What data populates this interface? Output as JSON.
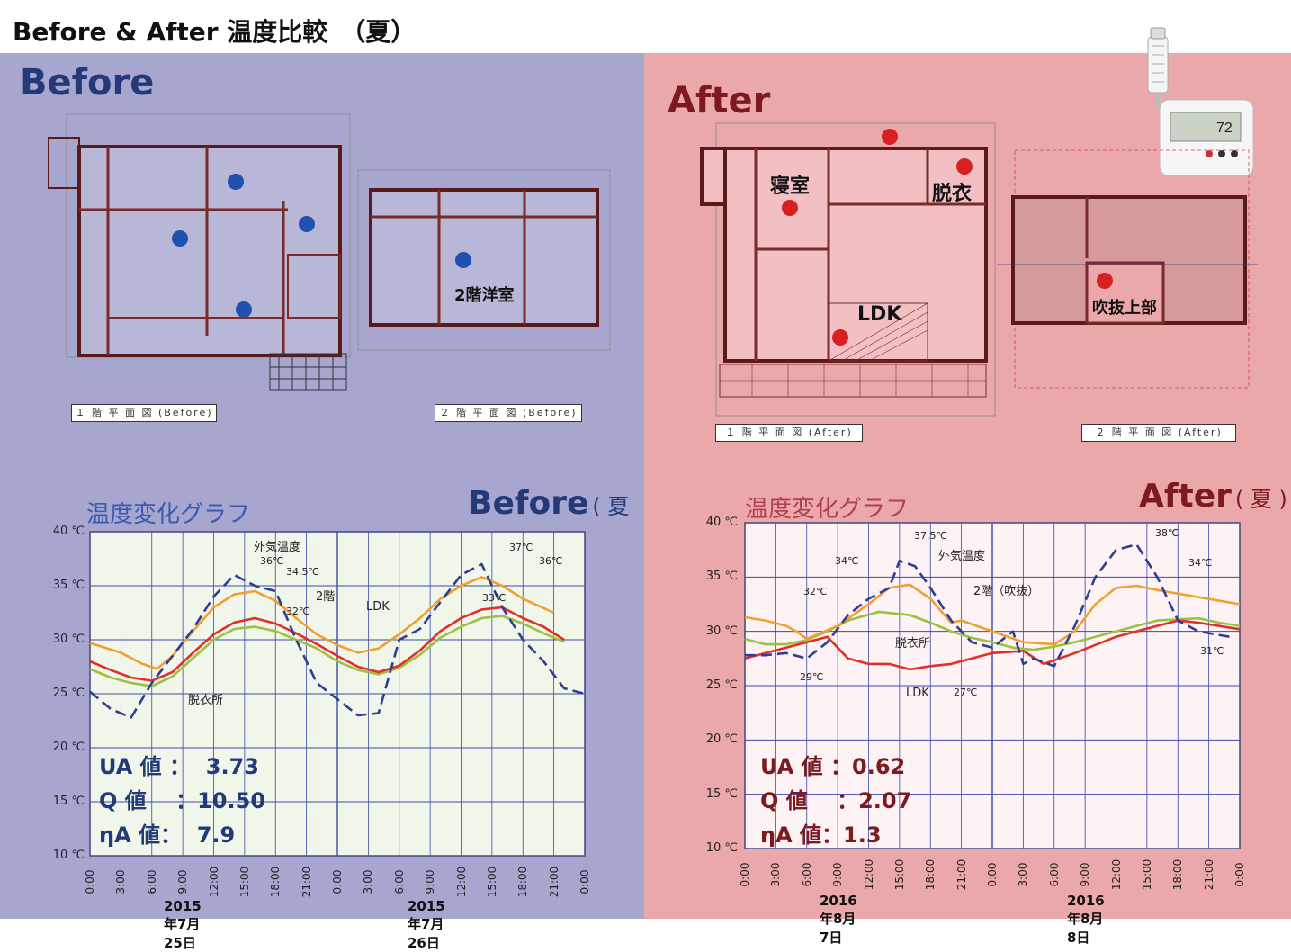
{
  "page_title": "Before & After 温度比較　（夏）",
  "before": {
    "heading": "Before",
    "plan1_caption": "１ 階 平 面 図 (Before)",
    "plan2_caption": "２ 階 平 面 図 (Before)",
    "room_2f": "2階洋室",
    "graph_title": "温度変化グラフ",
    "graph_tag": "Before",
    "season": "( 夏 )",
    "dates": [
      "2015年7月25日",
      "2015年7月26日"
    ],
    "stats": {
      "ua": "UA 値 ：  3.73",
      "q": "Q 値　 ：10.50",
      "eta": "ηA 値：  7.9"
    },
    "annotations": [
      "36℃",
      "34.5℃",
      "32℃",
      "37℃",
      "36℃",
      "33℃"
    ],
    "line_labels": {
      "outdoor": "外気温度",
      "floor2": "2階",
      "ldk": "LDK",
      "dressing": "脱衣所"
    }
  },
  "after": {
    "heading": "After",
    "plan1_caption": "１ 階 平 面 図 (After)",
    "plan2_caption": "２ 階 平 面 図 (After)",
    "rooms": {
      "bedroom": "寝室",
      "dressing": "脱衣",
      "ldk": "LDK",
      "atrium": "吹抜上部"
    },
    "graph_title": "温度変化グラフ",
    "graph_tag": "After",
    "season": "( 夏 )",
    "dates": [
      "2016年8月7日",
      "2016年8月8日"
    ],
    "stats": {
      "ua": "UA 値 ：0.62",
      "q": "Q 値　 ：2.07",
      "eta": "ηA 値：1.3"
    },
    "annotations": [
      "37.5℃",
      "34℃",
      "32℃",
      "29℃",
      "27℃",
      "38℃",
      "34℃",
      "31℃"
    ],
    "line_labels": {
      "outdoor": "外気温度",
      "floor2": "2階（吹抜）",
      "ldk": "LDK",
      "dressing": "脱衣所"
    },
    "device_display": "72"
  },
  "colors": {
    "before_head": "#233a78",
    "after_head": "#7c1a1f",
    "before_panel": "#a7a6cf",
    "after_panel": "#eba8aa",
    "outdoor": "#2c3e96",
    "floor2": "#f0a030",
    "ldk": "#e0302a",
    "dressing": "#9cc040",
    "dot_before": "#2050b0",
    "dot_after": "#d82020"
  },
  "chart_data": [
    {
      "type": "line",
      "title": "温度変化グラフ",
      "ylim": [
        10,
        40
      ],
      "yticks": [
        "40 ℃",
        "35 ℃",
        "30 ℃",
        "25 ℃",
        "20 ℃",
        "15 ℃",
        "10 ℃"
      ],
      "xticks": [
        "0:00",
        "3:00",
        "6:00",
        "9:00",
        "12:00",
        "15:00",
        "18:00",
        "21:00",
        "0:00",
        "3:00",
        "6:00",
        "9:00",
        "12:00",
        "15:00",
        "18:00",
        "21:00",
        "0:00"
      ],
      "x_hours": [
        0,
        3,
        6,
        9,
        12,
        15,
        18,
        21,
        24,
        27,
        30,
        33,
        36,
        39,
        42,
        45,
        48
      ],
      "series": [
        {
          "name": "外気温度",
          "values": [
            25.2,
            23.6,
            22.8,
            26.0,
            28.5,
            31.0,
            34.0,
            36.0,
            35.0,
            34.5,
            30.0,
            26.0,
            24.5,
            23.0,
            23.2,
            30.0,
            31.0,
            33.5,
            36.0,
            37.0,
            33.0,
            30.0,
            28.0,
            25.5,
            25.0
          ],
          "x": [
            0,
            2,
            4,
            6,
            8,
            10,
            12,
            14,
            16,
            18,
            20,
            22,
            24,
            26,
            28,
            30,
            32,
            34,
            36,
            38,
            40,
            42,
            44,
            46,
            48
          ]
        },
        {
          "name": "2階",
          "values": [
            29.7,
            28.8,
            27.8,
            27.3,
            28.5,
            30.8,
            33.0,
            34.2,
            34.5,
            33.6,
            32.0,
            30.5,
            29.5,
            28.8,
            29.2,
            30.5,
            32.0,
            33.8,
            35.0,
            35.8,
            35.0,
            33.8,
            32.5
          ],
          "x": [
            0,
            3,
            5,
            6.5,
            8,
            10,
            12,
            14,
            16,
            18,
            20,
            22,
            24,
            26,
            28,
            30,
            32,
            34,
            36,
            38,
            40,
            42,
            45
          ]
        },
        {
          "name": "LDK",
          "values": [
            28.0,
            27.2,
            26.5,
            26.2,
            27.0,
            28.8,
            30.5,
            31.6,
            32.0,
            31.5,
            30.6,
            29.6,
            28.5,
            27.5,
            27.0,
            27.6,
            29.0,
            30.8,
            32.0,
            32.8,
            33.0,
            32.0,
            31.2,
            30.0
          ],
          "x": [
            0,
            2,
            4,
            6,
            8,
            10,
            12,
            14,
            16,
            18,
            20,
            22,
            24,
            26,
            28,
            30,
            32,
            34,
            36,
            38,
            40,
            42,
            44,
            46
          ]
        },
        {
          "name": "脱衣所",
          "values": [
            27.3,
            26.5,
            26.0,
            25.7,
            26.6,
            28.3,
            30.0,
            31.0,
            31.2,
            30.8,
            30.0,
            29.2,
            28.0,
            27.2,
            26.8,
            27.4,
            28.6,
            30.2,
            31.2,
            32.0,
            32.2,
            31.5,
            30.6,
            29.8
          ],
          "x": [
            0,
            2,
            4,
            6,
            8,
            10,
            12,
            14,
            16,
            18,
            20,
            22,
            24,
            26,
            28,
            30,
            32,
            34,
            36,
            38,
            40,
            42,
            44,
            46
          ]
        }
      ]
    },
    {
      "type": "line",
      "title": "温度変化グラフ",
      "ylim": [
        10,
        40
      ],
      "yticks": [
        "40 ℃",
        "35 ℃",
        "30 ℃",
        "25 ℃",
        "20 ℃",
        "15 ℃",
        "10 ℃"
      ],
      "xticks": [
        "0:00",
        "3:00",
        "6:00",
        "9:00",
        "12:00",
        "15:00",
        "18:00",
        "21:00",
        "0:00",
        "3:00",
        "6:00",
        "9:00",
        "12:00",
        "15:00",
        "18:00",
        "21:00",
        "0:00"
      ],
      "x_hours": [
        0,
        3,
        6,
        9,
        12,
        15,
        18,
        21,
        24,
        27,
        30,
        33,
        36,
        39,
        42,
        45,
        48
      ],
      "series": [
        {
          "name": "外気温度",
          "values": [
            27.8,
            27.8,
            28.0,
            27.5,
            29.0,
            31.5,
            33.0,
            34.0,
            36.5,
            36.0,
            34.0,
            31.0,
            29.0,
            28.5,
            30.0,
            27.0,
            27.5,
            26.8,
            30.5,
            35.0,
            37.5,
            38.0,
            35.0,
            31.0,
            30.0,
            29.5
          ],
          "x": [
            0,
            2,
            4,
            6,
            8,
            10,
            12,
            14,
            15,
            16.5,
            18,
            20,
            22,
            24,
            26,
            27,
            28,
            30,
            32,
            34,
            36,
            38,
            40,
            42,
            44,
            47
          ]
        },
        {
          "name": "2階（吹抜）",
          "values": [
            31.3,
            31.0,
            30.5,
            30.0,
            29.3,
            30.5,
            32.5,
            34.0,
            34.3,
            33.0,
            30.8,
            31.0,
            30.0,
            29.0,
            28.8,
            30.0,
            32.5,
            34.0,
            34.2,
            33.8,
            32.5
          ],
          "x": [
            0,
            2,
            4,
            5,
            6,
            9,
            12,
            14,
            16,
            18,
            20,
            21,
            24,
            27,
            30,
            32,
            34,
            36,
            38,
            40,
            48
          ]
        },
        {
          "name": "LDK",
          "values": [
            27.5,
            28.0,
            28.5,
            29.0,
            29.5,
            27.5,
            27.0,
            27.0,
            26.5,
            26.8,
            27.0,
            27.5,
            28.0,
            28.2,
            27.0,
            28.0,
            29.5,
            30.5,
            31.0,
            30.8,
            30.2
          ],
          "x": [
            0,
            2,
            4,
            6,
            8,
            10,
            12,
            14,
            16,
            18,
            20,
            22,
            24,
            27,
            29,
            32,
            36,
            40,
            42,
            44,
            48
          ]
        },
        {
          "name": "脱衣所",
          "values": [
            29.3,
            28.8,
            28.8,
            29.2,
            30.0,
            31.0,
            31.8,
            31.5,
            30.8,
            30.0,
            29.4,
            29.0,
            28.5,
            28.3,
            28.6,
            29.0,
            30.0,
            31.0,
            31.2,
            30.8,
            30.5
          ],
          "x": [
            0,
            2,
            4,
            6,
            8,
            10,
            13,
            16,
            18,
            20,
            22,
            24,
            26,
            28,
            30,
            32,
            36,
            40,
            44,
            46,
            48
          ]
        }
      ]
    }
  ]
}
